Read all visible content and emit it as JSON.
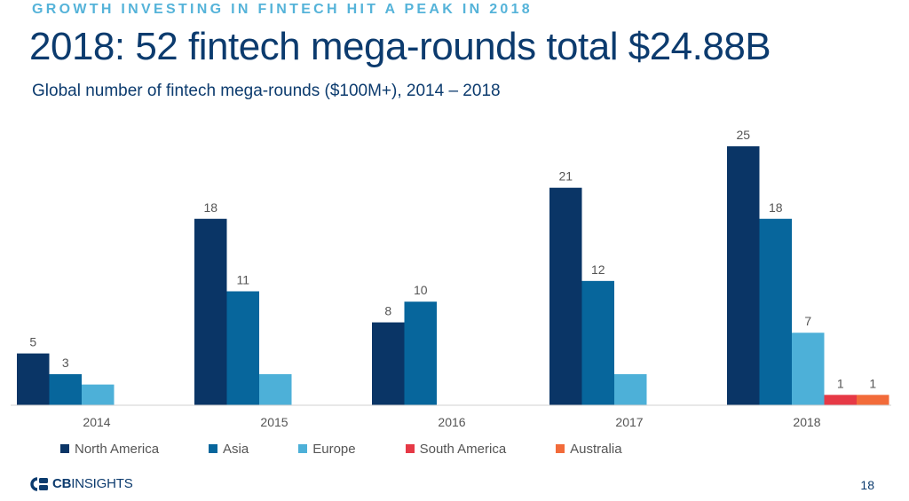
{
  "header": {
    "kicker": "GROWTH INVESTING IN FINTECH HIT A PEAK IN 2018",
    "title": "2018: 52 fintech mega-rounds total $24.88B",
    "subtitle": "Global number of fintech mega-rounds ($100M+), 2014 – 2018"
  },
  "chart_data": {
    "type": "bar",
    "title": "2018: 52 fintech mega-rounds total $24.88B",
    "subtitle": "Global number of fintech mega-rounds ($100M+), 2014 – 2018",
    "categories": [
      "2014",
      "2015",
      "2016",
      "2017",
      "2018"
    ],
    "series": [
      {
        "name": "North America",
        "color": "#0a3566",
        "values": [
          5,
          18,
          8,
          21,
          25
        ],
        "labels": [
          "5",
          "18",
          "8",
          "21",
          "25"
        ]
      },
      {
        "name": "Asia",
        "color": "#07669c",
        "values": [
          3,
          11,
          10,
          12,
          18
        ],
        "labels": [
          "3",
          "11",
          "10",
          "12",
          "18"
        ]
      },
      {
        "name": "Europe",
        "color": "#4db0d8",
        "values": [
          2,
          3,
          0,
          3,
          7
        ],
        "labels": [
          "",
          "",
          "",
          "",
          "7"
        ]
      },
      {
        "name": "South America",
        "color": "#e63946",
        "values": [
          0,
          0,
          0,
          0,
          1
        ],
        "labels": [
          "",
          "",
          "",
          "",
          "1"
        ]
      },
      {
        "name": "Australia",
        "color": "#f26b3a",
        "values": [
          0,
          0,
          0,
          0,
          1
        ],
        "labels": [
          "",
          "",
          "",
          "",
          "1"
        ]
      }
    ],
    "ylim": [
      0,
      25
    ],
    "xlabel": "",
    "ylabel": "",
    "grid": false,
    "legend": "bottom"
  },
  "footer": {
    "logo_bold": "CB",
    "logo_rest": "INSIGHTS",
    "page_number": "18"
  }
}
